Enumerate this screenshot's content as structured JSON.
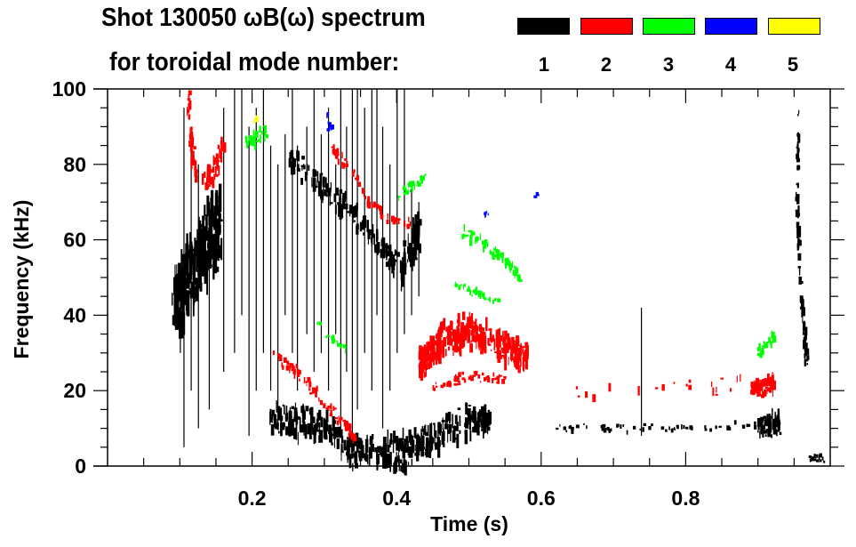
{
  "chart_data": {
    "type": "heatmap",
    "title_line1": "Shot 130050 ωB(ω) spectrum",
    "title_line2": "for toroidal mode number:",
    "xlabel": "Time (s)",
    "ylabel": "Frequency (kHz)",
    "xlim": [
      0.0,
      1.0
    ],
    "ylim": [
      0,
      100
    ],
    "xticks": [
      0.2,
      0.4,
      0.6,
      0.8
    ],
    "xtick_labels": [
      "0.2",
      "0.4",
      "0.6",
      "0.8"
    ],
    "yticks": [
      0,
      20,
      40,
      60,
      80,
      100
    ],
    "ytick_labels": [
      "0",
      "20",
      "40",
      "60",
      "80",
      "100"
    ],
    "legend": {
      "placement": "top-right",
      "entries": [
        {
          "label": "1",
          "color": "#000000"
        },
        {
          "label": "2",
          "color": "#ff0000"
        },
        {
          "label": "3",
          "color": "#00ff00"
        },
        {
          "label": "4",
          "color": "#0000ff"
        },
        {
          "label": "5",
          "color": "#ffff00"
        }
      ]
    },
    "series": [
      {
        "mode": 1,
        "color": "#000000",
        "features": [
          {
            "path": [
              [
                0.09,
                44
              ],
              [
                0.11,
                50
              ],
              [
                0.13,
                58
              ],
              [
                0.155,
                64
              ]
            ],
            "halfwidth_khz": 11,
            "density": 260
          },
          {
            "path": [
              [
                0.225,
                12
              ],
              [
                0.27,
                12
              ],
              [
                0.31,
                8
              ],
              [
                0.34,
                4
              ],
              [
                0.38,
                3
              ],
              [
                0.41,
                4
              ],
              [
                0.45,
                8
              ],
              [
                0.5,
                12
              ],
              [
                0.53,
                12
              ]
            ],
            "halfwidth_khz": 5,
            "density": 420
          },
          {
            "path": [
              [
                0.25,
                82
              ],
              [
                0.29,
                75
              ],
              [
                0.32,
                70
              ],
              [
                0.35,
                64
              ],
              [
                0.38,
                58
              ],
              [
                0.4,
                53
              ]
            ],
            "halfwidth_khz": 4,
            "density": 160
          },
          {
            "path": [
              [
                0.405,
                52
              ],
              [
                0.42,
                58
              ],
              [
                0.43,
                63
              ]
            ],
            "halfwidth_khz": 7,
            "density": 70
          },
          {
            "path": [
              [
                0.62,
                10
              ],
              [
                0.7,
                10
              ],
              [
                0.82,
                10
              ],
              [
                0.9,
                11
              ]
            ],
            "halfwidth_khz": 1.2,
            "density": 60
          },
          {
            "path": [
              [
                0.9,
                10
              ],
              [
                0.93,
                12
              ]
            ],
            "halfwidth_khz": 3.5,
            "density": 60
          },
          {
            "path": [
              [
                0.955,
                95
              ],
              [
                0.953,
                70
              ],
              [
                0.957,
                50
              ],
              [
                0.963,
                35
              ],
              [
                0.966,
                27
              ]
            ],
            "halfwidth_khz": 3,
            "density": 90
          },
          {
            "path": [
              [
                0.97,
                2
              ],
              [
                0.99,
                2
              ]
            ],
            "halfwidth_khz": 1.2,
            "density": 25
          }
        ],
        "streaks": [
          [
            0.105,
            5,
            95
          ],
          [
            0.115,
            20,
            90
          ],
          [
            0.125,
            10,
            80
          ],
          [
            0.14,
            15,
            70
          ],
          [
            0.16,
            25,
            95
          ],
          [
            0.175,
            30,
            100
          ],
          [
            0.185,
            40,
            100
          ],
          [
            0.195,
            8,
            90
          ],
          [
            0.205,
            20,
            95
          ],
          [
            0.215,
            30,
            100
          ],
          [
            0.225,
            20,
            85
          ],
          [
            0.235,
            10,
            80
          ],
          [
            0.245,
            40,
            88
          ],
          [
            0.255,
            30,
            100
          ],
          [
            0.262,
            20,
            85
          ],
          [
            0.275,
            35,
            90
          ],
          [
            0.285,
            25,
            100
          ],
          [
            0.295,
            30,
            88
          ],
          [
            0.305,
            20,
            95
          ],
          [
            0.315,
            35,
            80
          ],
          [
            0.322,
            10,
            100
          ],
          [
            0.33,
            25,
            90
          ],
          [
            0.338,
            5,
            100
          ],
          [
            0.345,
            15,
            100
          ],
          [
            0.355,
            30,
            95
          ],
          [
            0.365,
            20,
            100
          ],
          [
            0.372,
            40,
            100
          ],
          [
            0.38,
            10,
            90
          ],
          [
            0.39,
            20,
            80
          ],
          [
            0.4,
            30,
            100
          ],
          [
            0.41,
            35,
            100
          ],
          [
            0.42,
            40,
            75
          ],
          [
            0.43,
            45,
            70
          ],
          [
            0.738,
            8,
            42
          ],
          [
            0.1,
            30,
            50
          ]
        ]
      },
      {
        "mode": 2,
        "color": "#ff0000",
        "features": [
          {
            "path": [
              [
                0.11,
                98
              ],
              [
                0.115,
                85
              ],
              [
                0.12,
                78
              ]
            ],
            "halfwidth_khz": 4,
            "density": 50
          },
          {
            "path": [
              [
                0.13,
                74
              ],
              [
                0.15,
                80
              ],
              [
                0.16,
                86
              ]
            ],
            "halfwidth_khz": 4,
            "density": 45
          },
          {
            "path": [
              [
                0.23,
                29
              ],
              [
                0.26,
                25
              ],
              [
                0.29,
                19
              ],
              [
                0.32,
                12
              ],
              [
                0.34,
                7
              ]
            ],
            "halfwidth_khz": 2,
            "density": 80
          },
          {
            "path": [
              [
                0.31,
                84
              ],
              [
                0.33,
                80
              ],
              [
                0.36,
                70
              ],
              [
                0.39,
                65
              ],
              [
                0.42,
                64
              ]
            ],
            "halfwidth_khz": 1.8,
            "density": 55
          },
          {
            "path": [
              [
                0.43,
                27
              ],
              [
                0.46,
                33
              ],
              [
                0.5,
                36
              ],
              [
                0.54,
                32
              ],
              [
                0.58,
                29
              ]
            ],
            "halfwidth_khz": 5,
            "density": 320
          },
          {
            "path": [
              [
                0.45,
                21
              ],
              [
                0.5,
                24
              ],
              [
                0.55,
                23
              ]
            ],
            "halfwidth_khz": 1.4,
            "density": 60
          },
          {
            "path": [
              [
                0.89,
                20
              ],
              [
                0.92,
                22
              ]
            ],
            "halfwidth_khz": 3,
            "density": 70
          },
          {
            "path": [
              [
                0.62,
                19
              ],
              [
                0.7,
                20
              ],
              [
                0.8,
                21
              ],
              [
                0.88,
                22
              ]
            ],
            "halfwidth_khz": 3,
            "density": 20
          }
        ],
        "streaks": []
      },
      {
        "mode": 3,
        "color": "#00ff00",
        "features": [
          {
            "path": [
              [
                0.19,
                86
              ],
              [
                0.22,
                88
              ]
            ],
            "halfwidth_khz": 3,
            "density": 30
          },
          {
            "path": [
              [
                0.4,
                71
              ],
              [
                0.42,
                74
              ],
              [
                0.44,
                77
              ]
            ],
            "halfwidth_khz": 1.8,
            "density": 25
          },
          {
            "path": [
              [
                0.49,
                62
              ],
              [
                0.52,
                59
              ],
              [
                0.55,
                54
              ],
              [
                0.57,
                50
              ]
            ],
            "halfwidth_khz": 2,
            "density": 70
          },
          {
            "path": [
              [
                0.48,
                48
              ],
              [
                0.51,
                46
              ],
              [
                0.54,
                43
              ]
            ],
            "halfwidth_khz": 1.4,
            "density": 35
          },
          {
            "path": [
              [
                0.28,
                40
              ],
              [
                0.31,
                34
              ],
              [
                0.33,
                30
              ]
            ],
            "halfwidth_khz": 1.5,
            "density": 20
          },
          {
            "path": [
              [
                0.9,
                30
              ],
              [
                0.92,
                34
              ]
            ],
            "halfwidth_khz": 2,
            "density": 30
          }
        ],
        "streaks": []
      },
      {
        "mode": 4,
        "color": "#0000ff",
        "features": [
          {
            "path": [
              [
                0.3,
                92
              ],
              [
                0.31,
                89
              ]
            ],
            "halfwidth_khz": 2,
            "density": 10
          },
          {
            "path": [
              [
                0.52,
                67
              ],
              [
                0.525,
                67
              ]
            ],
            "halfwidth_khz": 0.8,
            "density": 4
          },
          {
            "path": [
              [
                0.59,
                71
              ],
              [
                0.592,
                72
              ]
            ],
            "halfwidth_khz": 0.8,
            "density": 3
          }
        ],
        "streaks": []
      },
      {
        "mode": 5,
        "color": "#ffff00",
        "features": [
          {
            "path": [
              [
                0.2,
                91
              ],
              [
                0.21,
                93
              ]
            ],
            "halfwidth_khz": 1,
            "density": 5
          }
        ],
        "streaks": []
      }
    ]
  }
}
